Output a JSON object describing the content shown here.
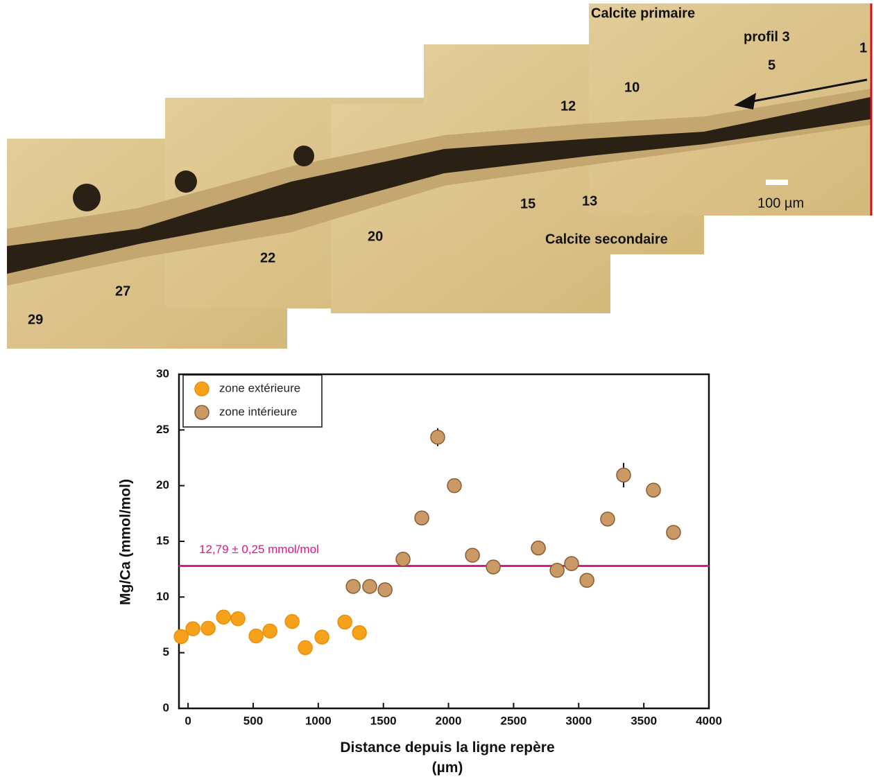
{
  "micrograph": {
    "labels": [
      "Calcite primaire",
      "profil 3",
      "1",
      "5",
      "10",
      "12",
      "13",
      "15",
      "20",
      "22",
      "27",
      "29",
      "Calcite secondaire"
    ],
    "scale_bar": "100 µm"
  },
  "chart_data": {
    "type": "scatter",
    "y_label": "Mg/Ca (mmol/mol)",
    "x_label": "Distance depuis la ligne repère (µm)",
    "xlim": [
      -70,
      4000
    ],
    "ylim": [
      0,
      30
    ],
    "xticks": [
      0,
      500,
      1000,
      1500,
      2000,
      2500,
      3000,
      3500,
      4000
    ],
    "yticks": [
      0,
      5,
      10,
      15,
      20,
      25,
      30
    ],
    "legend": "top-left",
    "reference_line": {
      "value": 12.79,
      "label": "12,79 ± 0,25 mmol/mol",
      "color": "#e0158c"
    },
    "series": [
      {
        "name": "zone extérieure",
        "color": "#f7a11a",
        "edge": "#e8900a",
        "x": [
          -53,
          37,
          154,
          272,
          383,
          522,
          629,
          799,
          900,
          1028,
          1204,
          1316
        ],
        "values": [
          6.45,
          7.15,
          7.2,
          8.2,
          8.05,
          6.5,
          6.95,
          7.8,
          5.45,
          6.4,
          7.75,
          6.8
        ]
      },
      {
        "name": "zone intérieure",
        "color": "#c99a66",
        "edge": "#8a5a30",
        "x": [
          1268,
          1395,
          1513,
          1651,
          1795,
          1917,
          2045,
          2184,
          2344,
          2690,
          2834,
          2945,
          3063,
          3222,
          3345,
          3574,
          3728
        ],
        "values": [
          10.95,
          10.95,
          10.65,
          13.4,
          17.1,
          24.35,
          20.0,
          13.75,
          12.7,
          14.4,
          12.4,
          13.0,
          11.5,
          17.0,
          20.95,
          19.6,
          15.8
        ],
        "errors": [
          null,
          null,
          null,
          null,
          null,
          0.8,
          null,
          null,
          null,
          null,
          null,
          null,
          null,
          null,
          1.1,
          null,
          null
        ]
      }
    ]
  }
}
